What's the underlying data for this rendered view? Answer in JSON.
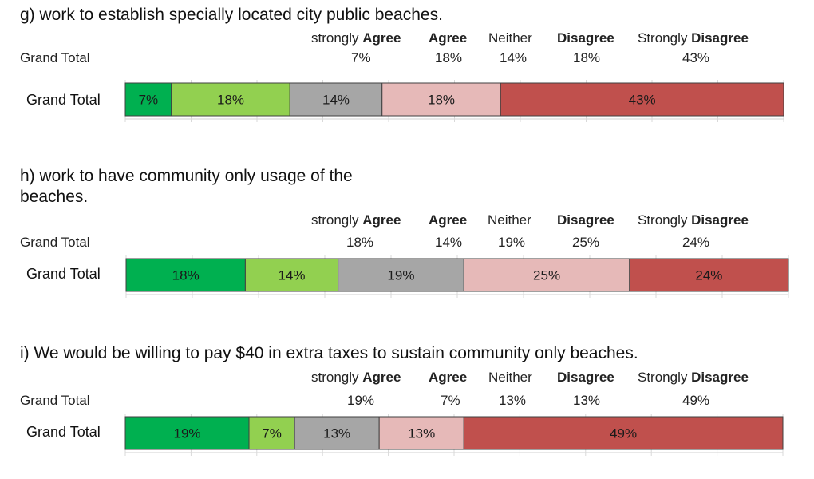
{
  "header_labels": [
    {
      "pre": "strongly ",
      "bold": "Agree"
    },
    {
      "pre": "",
      "bold": "Agree"
    },
    {
      "pre": "Neither",
      "bold": ""
    },
    {
      "pre": "",
      "bold": "Disagree"
    },
    {
      "pre": "Strongly ",
      "bold": "Disagree"
    }
  ],
  "grand_total_label": "Grand Total",
  "colors": {
    "strongly_agree": "#00b050",
    "agree": "#92d050",
    "neither": "#a6a6a6",
    "disagree": "#e6b9b8",
    "strongly_disagree": "#c0504d"
  },
  "chart_data": [
    {
      "type": "bar",
      "title": "g)  work to establish specially located city public beaches.",
      "categories": [
        "Grand Total"
      ],
      "series": [
        {
          "name": "strongly Agree",
          "values": [
            7
          ]
        },
        {
          "name": "Agree",
          "values": [
            18
          ]
        },
        {
          "name": "Neither",
          "values": [
            14
          ]
        },
        {
          "name": "Disagree",
          "values": [
            18
          ]
        },
        {
          "name": "Strongly Disagree",
          "values": [
            43
          ]
        }
      ],
      "table_values": [
        "7%",
        "18%",
        "14%",
        "18%",
        "43%"
      ],
      "xlim": [
        0,
        100
      ]
    },
    {
      "type": "bar",
      "title": "h)  work to have community only usage of the beaches.",
      "categories": [
        "Grand Total"
      ],
      "series": [
        {
          "name": "strongly Agree",
          "values": [
            18
          ]
        },
        {
          "name": "Agree",
          "values": [
            14
          ]
        },
        {
          "name": "Neither",
          "values": [
            19
          ]
        },
        {
          "name": "Disagree",
          "values": [
            25
          ]
        },
        {
          "name": "Strongly Disagree",
          "values": [
            24
          ]
        }
      ],
      "table_values": [
        "18%",
        "14%",
        "19%",
        "25%",
        "24%"
      ],
      "xlim": [
        0,
        100
      ]
    },
    {
      "type": "bar",
      "title": "i)    We would be willing to pay $40 in extra taxes to sustain community only beaches.",
      "categories": [
        "Grand Total"
      ],
      "series": [
        {
          "name": "strongly Agree",
          "values": [
            19
          ]
        },
        {
          "name": "Agree",
          "values": [
            7
          ]
        },
        {
          "name": "Neither",
          "values": [
            13
          ]
        },
        {
          "name": "Disagree",
          "values": [
            13
          ]
        },
        {
          "name": "Strongly Disagree",
          "values": [
            49
          ]
        }
      ],
      "table_values": [
        "19%",
        "7%",
        "13%",
        "13%",
        "49%"
      ],
      "xlim": [
        0,
        100
      ]
    }
  ]
}
